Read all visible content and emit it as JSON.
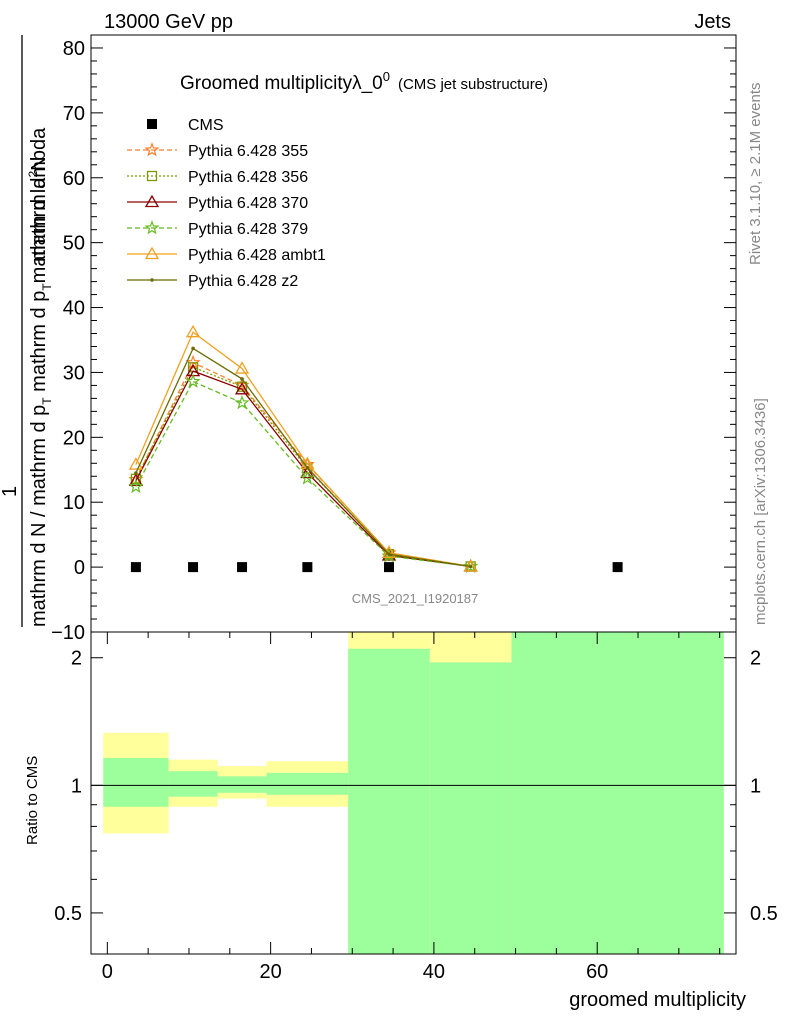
{
  "header": {
    "left": "13000 GeV pp",
    "right": "Jets"
  },
  "side": {
    "rivet": "Rivet 3.1.10, ≥ 2.1M events",
    "mcplots": "mcplots.cern.ch [arXiv:1306.3436]"
  },
  "chart_data": [
    {
      "type": "line",
      "title_main": "Groomed multiplicityλ_0",
      "title_sup": "0",
      "title_note": "(CMS jet substructure)",
      "ylabel_num": "1",
      "ylabel_den": "mathrm d N / mathrm d p_T mathrm d p_T mathrm d lambda",
      "ylabel_top": "mathrm d^{2}N",
      "ylabel_den_display": "mathrm d N / mathrm d p",
      "ylabel_den_2": "mathrm d p",
      "ylabel_den_3": "mathrm d lambda",
      "ylabel_top_display": "mathrm d",
      "ylabel_top_2": "N",
      "ylim": [
        -10,
        82
      ],
      "yticks": [
        -10,
        0,
        10,
        20,
        30,
        40,
        50,
        60,
        70,
        80
      ],
      "xlim": [
        -2,
        77
      ],
      "analysis_label": "CMS_2021_I1920187",
      "data_series": {
        "name": "CMS",
        "color": "#000000",
        "x": [
          3.5,
          10.5,
          16.5,
          24.5,
          34.5,
          62.5
        ],
        "y": [
          0,
          0,
          0,
          0,
          0,
          0
        ]
      },
      "series": [
        {
          "name": "Pythia 6.428 355",
          "color": "#ff7f2a",
          "dash": "5,3",
          "marker": "star",
          "x": [
            3.5,
            10.5,
            16.5,
            24.5,
            34.5,
            44.5
          ],
          "y": [
            13.5,
            31.5,
            28.0,
            15.8,
            2.2,
            0.1
          ]
        },
        {
          "name": "Pythia 6.428 356",
          "color": "#7a9a01",
          "dash": "2,2",
          "marker": "square",
          "x": [
            3.5,
            10.5,
            16.5,
            24.5,
            34.5,
            44.5
          ],
          "y": [
            13.6,
            30.8,
            27.8,
            15.2,
            2.0,
            0.1
          ]
        },
        {
          "name": "Pythia 6.428 370",
          "color": "#8b0000",
          "dash": "",
          "marker": "triangle",
          "x": [
            3.5,
            10.5,
            16.5,
            24.5,
            34.5,
            44.5
          ],
          "y": [
            13.3,
            30.2,
            27.4,
            14.5,
            1.8,
            0.1
          ]
        },
        {
          "name": "Pythia 6.428 379",
          "color": "#66bb22",
          "dash": "5,3",
          "marker": "star",
          "x": [
            3.5,
            10.5,
            16.5,
            24.5,
            34.5,
            44.5
          ],
          "y": [
            12.4,
            28.6,
            25.3,
            13.7,
            1.7,
            0.1
          ]
        },
        {
          "name": "Pythia 6.428 ambt1",
          "color": "#f0a020",
          "dash": "",
          "marker": "triangle",
          "x": [
            3.5,
            10.5,
            16.5,
            24.5,
            34.5,
            44.5
          ],
          "y": [
            15.8,
            36.2,
            30.6,
            15.9,
            2.2,
            0.1
          ]
        },
        {
          "name": "Pythia 6.428 z2",
          "color": "#6b6b00",
          "dash": "",
          "marker": "dot",
          "x": [
            3.5,
            10.5,
            16.5,
            24.5,
            34.5,
            44.5
          ],
          "y": [
            14.5,
            33.7,
            29.0,
            15.3,
            2.0,
            0.1
          ]
        }
      ]
    },
    {
      "type": "area",
      "ylabel": "Ratio to CMS",
      "xlabel": "groomed multiplicity",
      "scale": "log",
      "ylim": [
        0.4,
        2.3
      ],
      "yticks": [
        0.5,
        1,
        2
      ],
      "xticks": [
        0,
        20,
        40,
        60
      ],
      "xlim": [
        -2,
        77
      ],
      "reference": 1,
      "bins": [
        {
          "lo": -0.5,
          "hi": 7.5,
          "stat_lo": 0.89,
          "stat_hi": 1.16,
          "tot_lo": 0.77,
          "tot_hi": 1.33
        },
        {
          "lo": 7.5,
          "hi": 13.5,
          "stat_lo": 0.94,
          "stat_hi": 1.08,
          "tot_lo": 0.89,
          "tot_hi": 1.15
        },
        {
          "lo": 13.5,
          "hi": 19.5,
          "stat_lo": 0.96,
          "stat_hi": 1.05,
          "tot_lo": 0.93,
          "tot_hi": 1.11
        },
        {
          "lo": 19.5,
          "hi": 29.5,
          "stat_lo": 0.95,
          "stat_hi": 1.07,
          "tot_lo": 0.89,
          "tot_hi": 1.14
        },
        {
          "lo": 29.5,
          "hi": 39.5,
          "stat_lo": 0.37,
          "stat_hi": 2.1,
          "tot_lo": 0.37,
          "tot_hi": 2.3
        },
        {
          "lo": 39.5,
          "hi": 49.5,
          "stat_lo": 0.37,
          "stat_hi": 1.95,
          "tot_lo": 0.37,
          "tot_hi": 2.3
        },
        {
          "lo": 49.5,
          "hi": 75.5,
          "stat_lo": 0.37,
          "stat_hi": 2.3,
          "tot_lo": 0.37,
          "tot_hi": 2.3
        }
      ],
      "stat_color": "#9cff9c",
      "tot_color": "#ffff9c"
    }
  ]
}
